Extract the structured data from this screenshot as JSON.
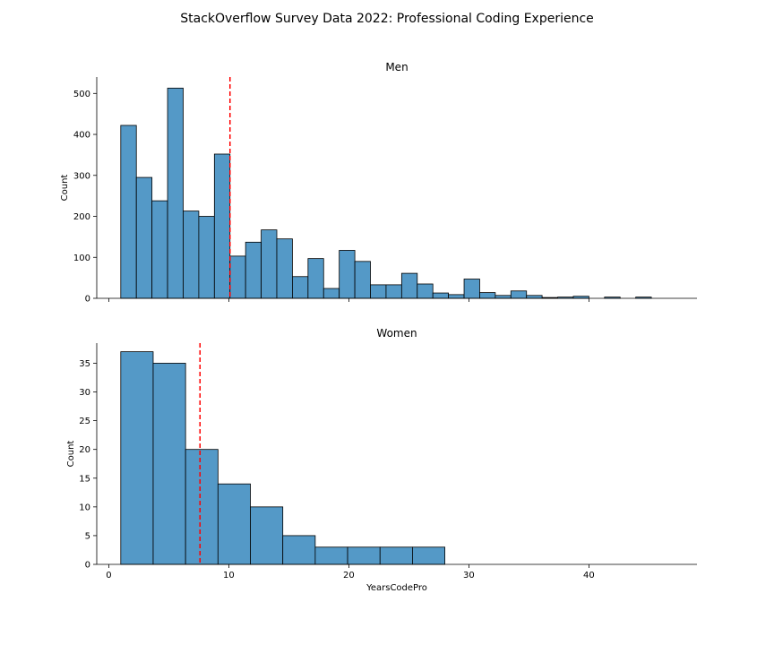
{
  "figure": {
    "title": "StackOverflow Survey Data 2022: Professional Coding Experience"
  },
  "chart_data": [
    {
      "type": "histogram",
      "title": "Men",
      "xlabel": "",
      "ylabel": "Count",
      "xlim": [
        -1,
        49
      ],
      "ylim": [
        0,
        540
      ],
      "xticks": [
        0,
        10,
        20,
        30,
        40
      ],
      "show_xtick_labels": false,
      "yticks": [
        0,
        100,
        200,
        300,
        400,
        500
      ],
      "bin_start": 1,
      "bin_width": 1.3,
      "counts": [
        422,
        295,
        238,
        513,
        213,
        200,
        352,
        103,
        137,
        167,
        145,
        53,
        97,
        24,
        117,
        90,
        33,
        33,
        61,
        35,
        13,
        9,
        47,
        14,
        7,
        18,
        7,
        2,
        3,
        5,
        0,
        3,
        0,
        3,
        0
      ],
      "mean_line": 10.1,
      "mean_color": "#ff0000",
      "bar_color": "#5499c7"
    },
    {
      "type": "histogram",
      "title": "Women",
      "xlabel": "YearsCodePro",
      "ylabel": "Count",
      "xlim": [
        -1,
        49
      ],
      "ylim": [
        0,
        38.5
      ],
      "xticks": [
        0,
        10,
        20,
        30,
        40
      ],
      "show_xtick_labels": true,
      "yticks": [
        0,
        5,
        10,
        15,
        20,
        25,
        30,
        35
      ],
      "bin_start": 1,
      "bin_width": 2.7,
      "counts": [
        37,
        35,
        20,
        14,
        10,
        5,
        3,
        3,
        3,
        3
      ],
      "mean_line": 7.6,
      "mean_color": "#ff0000",
      "bar_color": "#5499c7"
    }
  ]
}
